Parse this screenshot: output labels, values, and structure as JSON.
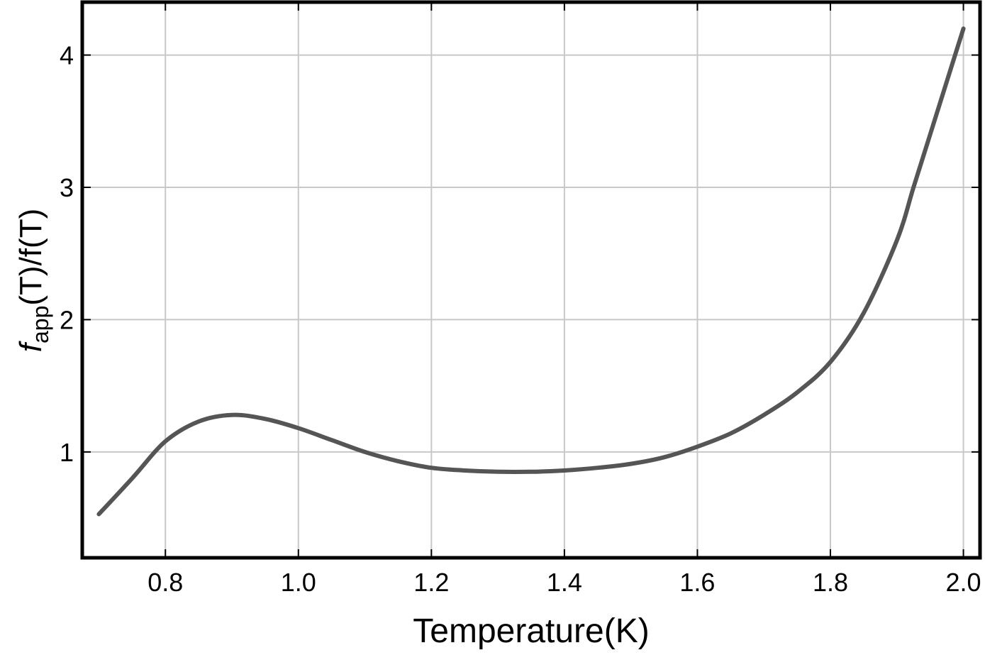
{
  "chart_data": {
    "type": "line",
    "title": "",
    "xlabel": "Temperature(K)",
    "ylabel": {
      "symbol": "f",
      "subscript": "app",
      "rest": "(T)/f(T)"
    },
    "xlim": [
      0.675,
      2.025
    ],
    "ylim": [
      0.2,
      4.4
    ],
    "x_ticks": [
      "0.8",
      "1.0",
      "1.2",
      "1.4",
      "1.6",
      "1.8",
      "2.0"
    ],
    "y_ticks": [
      "1",
      "2",
      "3",
      "4"
    ],
    "grid": true,
    "line_color": "#555555",
    "series": [
      {
        "x": [
          0.7,
          0.75,
          0.8,
          0.85,
          0.9,
          0.95,
          1.0,
          1.05,
          1.1,
          1.15,
          1.2,
          1.25,
          1.3,
          1.35,
          1.4,
          1.45,
          1.5,
          1.55,
          1.6,
          1.65,
          1.7,
          1.75,
          1.8,
          1.85,
          1.9,
          1.925,
          1.95,
          1.975,
          2.0
        ],
        "y": [
          0.53,
          0.8,
          1.08,
          1.23,
          1.28,
          1.25,
          1.18,
          1.09,
          1.0,
          0.93,
          0.88,
          0.86,
          0.85,
          0.85,
          0.86,
          0.88,
          0.91,
          0.96,
          1.04,
          1.14,
          1.28,
          1.45,
          1.68,
          2.05,
          2.6,
          3.0,
          3.4,
          3.8,
          4.2
        ]
      }
    ]
  }
}
